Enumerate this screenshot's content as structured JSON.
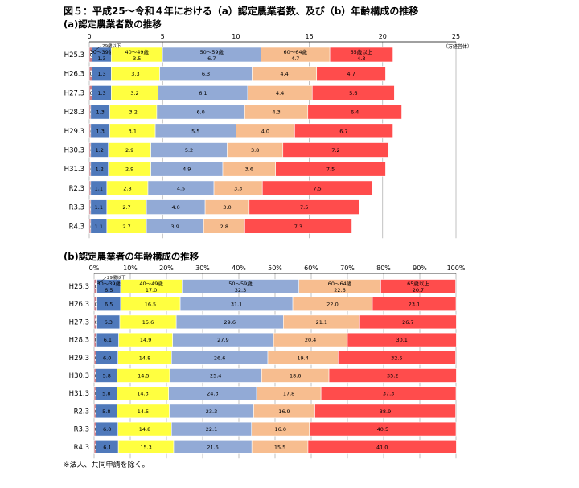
{
  "title": "図５：平成25～令和４年における（a）認定農業者数、及び（b）年齢構成の推移",
  "note": "※法人、共同申請を除く。",
  "colors": {
    "u29": "#c87c86",
    "a30": "#4f79bb",
    "a40": "#ffff40",
    "a50": "#92aad6",
    "a60": "#f7bd8f",
    "a65": "#ff4c4c",
    "grid": "#999999"
  },
  "chart_data": [
    {
      "type": "bar",
      "stacked": true,
      "orientation": "horizontal",
      "title": "(a)認定農業者数の推移",
      "unit": "（万経営体）",
      "xlim": [
        0,
        25
      ],
      "ticks": [
        0,
        5,
        10,
        15,
        20,
        25
      ],
      "categories": [
        "H25.3",
        "H26.3",
        "H27.3",
        "H28.3",
        "H29.3",
        "H30.3",
        "H31.3",
        "R2.3",
        "R3.3",
        "R4.3"
      ],
      "series": [
        {
          "name": "29歳以下",
          "key": "u29",
          "values": [
            0.2,
            0.2,
            0.2,
            0.1,
            0.1,
            0.1,
            0.1,
            0.1,
            0.1,
            0.1
          ],
          "labels": [
            "0.2",
            "0.2",
            "0.2",
            "0.1",
            "0.1",
            "0.1",
            "0.1",
            "0.1",
            "0.1",
            "0.1"
          ]
        },
        {
          "name": "30～39歳",
          "key": "a30",
          "values": [
            1.3,
            1.3,
            1.3,
            1.3,
            1.3,
            1.2,
            1.2,
            1.1,
            1.1,
            1.1
          ],
          "labels": [
            "1.3",
            "1.3",
            "1.3",
            "1.3",
            "1.3",
            "1.2",
            "1.2",
            "1.1",
            "1.1",
            "1.1"
          ]
        },
        {
          "name": "40～49歳",
          "key": "a40",
          "values": [
            3.5,
            3.3,
            3.2,
            3.2,
            3.1,
            2.9,
            2.9,
            2.8,
            2.7,
            2.7
          ],
          "labels": [
            "3.5",
            "3.3",
            "3.2",
            "3.2",
            "3.1",
            "2.9",
            "2.9",
            "2.8",
            "2.7",
            "2.7"
          ]
        },
        {
          "name": "50～59歳",
          "key": "a50",
          "values": [
            6.7,
            6.3,
            6.1,
            6.0,
            5.5,
            5.2,
            4.9,
            4.5,
            4.0,
            3.9
          ],
          "labels": [
            "6.7",
            "6.3",
            "6.1",
            "6.0",
            "5.5",
            "5.2",
            "4.9",
            "4.5",
            "4.0",
            "3.9"
          ]
        },
        {
          "name": "60～64歳",
          "key": "a60",
          "values": [
            4.7,
            4.4,
            4.4,
            4.3,
            4.0,
            3.8,
            3.6,
            3.3,
            3.0,
            2.8
          ],
          "labels": [
            "4.7",
            "4.4",
            "4.4",
            "4.3",
            "4.0",
            "3.8",
            "3.6",
            "3.3",
            "3.0",
            "2.8"
          ]
        },
        {
          "name": "65歳以上",
          "key": "a65",
          "values": [
            4.3,
            4.7,
            5.6,
            6.4,
            6.7,
            7.2,
            7.5,
            7.5,
            7.5,
            7.3
          ],
          "labels": [
            "4.3",
            "4.7",
            "5.6",
            "6.4",
            "6.7",
            "7.2",
            "7.5",
            "7.5",
            "7.5",
            "7.3"
          ]
        }
      ]
    },
    {
      "type": "bar",
      "stacked": true,
      "orientation": "horizontal",
      "title": "(b)認定農業者の年齢構成の推移",
      "xlim": [
        0,
        100
      ],
      "ticks": [
        "0%",
        "10%",
        "20%",
        "30%",
        "40%",
        "50%",
        "60%",
        "70%",
        "80%",
        "90%",
        "100%"
      ],
      "categories": [
        "H25.3",
        "H26.3",
        "H27.3",
        "H28.3",
        "H29.3",
        "H30.3",
        "H31.3",
        "R2.3",
        "R3.3",
        "R4.3"
      ],
      "series": [
        {
          "name": "29歳以下",
          "key": "u29",
          "values": [
            0.8,
            0.8,
            0.8,
            0.7,
            0.6,
            0.6,
            0.5,
            0.5,
            0.6,
            0.6
          ],
          "labels": [
            "0.8",
            "0.8",
            "0.8",
            "0.7",
            "0.6",
            "0.6",
            "0.5",
            "0.5",
            "0.6",
            "0.6"
          ]
        },
        {
          "name": "30～39歳",
          "key": "a30",
          "values": [
            6.5,
            6.5,
            6.3,
            6.1,
            6.0,
            5.8,
            5.8,
            5.8,
            6.0,
            6.1
          ],
          "labels": [
            "6.5",
            "6.5",
            "6.3",
            "6.1",
            "6.0",
            "5.8",
            "5.8",
            "5.8",
            "6.0",
            "6.1"
          ]
        },
        {
          "name": "40～49歳",
          "key": "a40",
          "values": [
            17.0,
            16.5,
            15.6,
            14.9,
            14.8,
            14.5,
            14.3,
            14.5,
            14.8,
            15.3
          ],
          "labels": [
            "17.0",
            "16.5",
            "15.6",
            "14.9",
            "14.8",
            "14.5",
            "14.3",
            "14.5",
            "14.8",
            "15.3"
          ]
        },
        {
          "name": "50～59歳",
          "key": "a50",
          "values": [
            32.3,
            31.1,
            29.6,
            27.9,
            26.6,
            25.4,
            24.3,
            23.3,
            22.1,
            21.6
          ],
          "labels": [
            "32.3",
            "31.1",
            "29.6",
            "27.9",
            "26.6",
            "25.4",
            "24.3",
            "23.3",
            "22.1",
            "21.6"
          ]
        },
        {
          "name": "60～64歳",
          "key": "a60",
          "values": [
            22.6,
            22.0,
            21.1,
            20.4,
            19.4,
            18.6,
            17.8,
            16.9,
            16.0,
            15.5
          ],
          "labels": [
            "22.6",
            "22.0",
            "21.1",
            "20.4",
            "19.4",
            "18.6",
            "17.8",
            "16.9",
            "16.0",
            "15.5"
          ]
        },
        {
          "name": "65歳以上",
          "key": "a65",
          "values": [
            20.7,
            23.1,
            26.7,
            30.1,
            32.5,
            35.2,
            37.3,
            38.9,
            40.5,
            41.0
          ],
          "labels": [
            "20.7",
            "23.1",
            "26.7",
            "30.1",
            "32.5",
            "35.2",
            "37.3",
            "38.9",
            "40.5",
            "41.0"
          ]
        }
      ]
    }
  ]
}
